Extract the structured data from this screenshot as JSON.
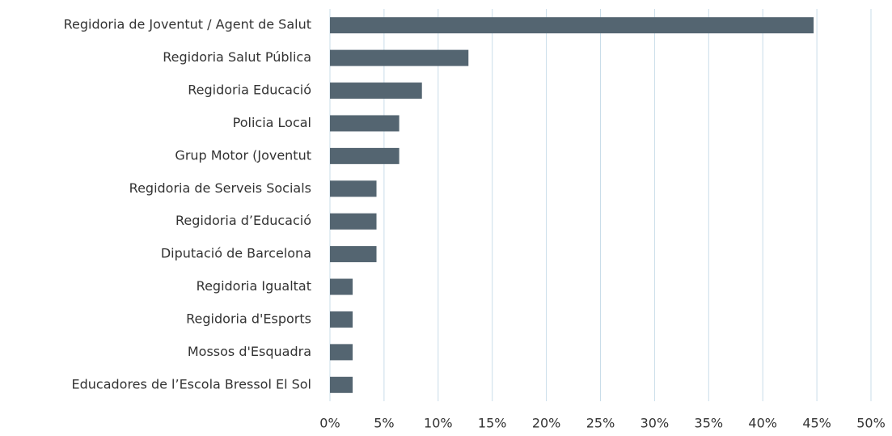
{
  "chart_data": {
    "type": "bar",
    "orientation": "horizontal",
    "categories": [
      "Regidoria de Joventut / Agent de Salut",
      "Regidoria Salut Pública",
      "Regidoria Educació",
      "Policia Local",
      "Grup Motor (Joventut",
      "Regidoria de Serveis Socials",
      "Regidoria d’Educació",
      "Diputació de Barcelona",
      "Regidoria Igualtat",
      "Regidoria d'Esports",
      "Mossos d'Esquadra",
      "Educadores de l’Escola Bressol El Sol"
    ],
    "values": [
      44.7,
      12.8,
      8.5,
      6.4,
      6.4,
      4.3,
      4.3,
      4.3,
      2.1,
      2.1,
      2.1,
      2.1
    ],
    "color": "#546571",
    "xlim": [
      0,
      50
    ],
    "xticks": [
      {
        "value": 0,
        "label": "0%"
      },
      {
        "value": 5,
        "label": "5%"
      },
      {
        "value": 10,
        "label": "10%"
      },
      {
        "value": 15,
        "label": "15%"
      },
      {
        "value": 20,
        "label": "20%"
      },
      {
        "value": 25,
        "label": "25%"
      },
      {
        "value": 30,
        "label": "30%"
      },
      {
        "value": 35,
        "label": "35%"
      },
      {
        "value": 40,
        "label": "40%"
      },
      {
        "value": 45,
        "label": "45%"
      },
      {
        "value": 50,
        "label": "50%"
      }
    ],
    "grid": true
  }
}
